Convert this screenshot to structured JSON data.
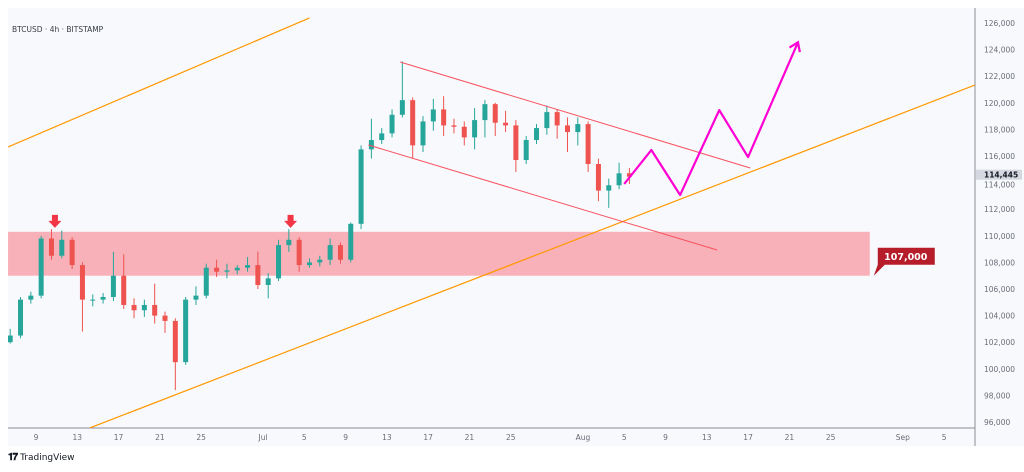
{
  "chart_data": {
    "type": "candlestick",
    "title": "BTCUSD · 4h · BITSTAMP",
    "symbol": "BTCUSD",
    "interval": "4h",
    "exchange": "BITSTAMP",
    "ylim": [
      96000,
      126000
    ],
    "y_ticks": [
      126000,
      124000,
      122000,
      120000,
      118000,
      116000,
      114000,
      112000,
      110000,
      108000,
      106000,
      104000,
      102000,
      100000,
      98000,
      96000
    ],
    "x_ticks": [
      {
        "label": "9",
        "date": "2025-06-09"
      },
      {
        "label": "13",
        "date": "2025-06-13"
      },
      {
        "label": "17",
        "date": "2025-06-17"
      },
      {
        "label": "21",
        "date": "2025-06-21"
      },
      {
        "label": "25",
        "date": "2025-06-25"
      },
      {
        "label": "Jul",
        "date": "2025-07-01"
      },
      {
        "label": "5",
        "date": "2025-07-05"
      },
      {
        "label": "9",
        "date": "2025-07-09"
      },
      {
        "label": "13",
        "date": "2025-07-13"
      },
      {
        "label": "17",
        "date": "2025-07-17"
      },
      {
        "label": "21",
        "date": "2025-07-21"
      },
      {
        "label": "25",
        "date": "2025-07-25"
      },
      {
        "label": "Aug",
        "date": "2025-08-01"
      },
      {
        "label": "5",
        "date": "2025-08-05"
      },
      {
        "label": "9",
        "date": "2025-08-09"
      },
      {
        "label": "13",
        "date": "2025-08-13"
      },
      {
        "label": "17",
        "date": "2025-08-17"
      },
      {
        "label": "21",
        "date": "2025-08-21"
      },
      {
        "label": "25",
        "date": "2025-08-25"
      },
      {
        "label": "Sep",
        "date": "2025-09-01"
      },
      {
        "label": "5",
        "date": "2025-09-05"
      }
    ],
    "last_price": 114445,
    "last_price_label": "114,445",
    "colors": {
      "up": "#26a69a",
      "down": "#ef5350",
      "channel": "#f7525f",
      "trendline": "#ff9800",
      "zone": "#f7a8b0",
      "projection": "#ff00d4",
      "label_bg": "#b71c2b"
    },
    "candles": [
      [
        "2025-06-06",
        102000,
        103000,
        101900,
        102500
      ],
      [
        "2025-06-07",
        102500,
        105400,
        102300,
        105200
      ],
      [
        "2025-06-08",
        105200,
        105800,
        104900,
        105500
      ],
      [
        "2025-06-09",
        105500,
        110000,
        105300,
        109800
      ],
      [
        "2025-06-10",
        109800,
        110500,
        108200,
        108500
      ],
      [
        "2025-06-11",
        108500,
        110400,
        108300,
        109700
      ],
      [
        "2025-06-12",
        109700,
        109900,
        107500,
        107800
      ],
      [
        "2025-06-13",
        107800,
        108000,
        102800,
        105200
      ],
      [
        "2025-06-14",
        105200,
        105600,
        104700,
        105200
      ],
      [
        "2025-06-15",
        105200,
        105700,
        104900,
        105400
      ],
      [
        "2025-06-16",
        105400,
        108800,
        105100,
        107000
      ],
      [
        "2025-06-17",
        107000,
        108600,
        104500,
        104800
      ],
      [
        "2025-06-18",
        104800,
        105300,
        103800,
        104400
      ],
      [
        "2025-06-19",
        104400,
        105200,
        103900,
        104800
      ],
      [
        "2025-06-20",
        104800,
        106400,
        103400,
        104000
      ],
      [
        "2025-06-21",
        104000,
        104300,
        102700,
        103600
      ],
      [
        "2025-06-22",
        103600,
        103800,
        98400,
        100500
      ],
      [
        "2025-06-23",
        100500,
        105400,
        100300,
        105200
      ],
      [
        "2025-06-24",
        105200,
        106200,
        104800,
        105500
      ],
      [
        "2025-06-25",
        105500,
        107900,
        105300,
        107600
      ],
      [
        "2025-06-26",
        107600,
        108200,
        106900,
        107300
      ],
      [
        "2025-06-27",
        107300,
        107900,
        106800,
        107400
      ],
      [
        "2025-06-28",
        107400,
        107800,
        107100,
        107600
      ],
      [
        "2025-06-29",
        107600,
        108400,
        107300,
        107800
      ],
      [
        "2025-06-30",
        107800,
        108800,
        106000,
        106300
      ],
      [
        "2025-07-01",
        106300,
        107200,
        105300,
        106800
      ],
      [
        "2025-07-02",
        106800,
        109700,
        106600,
        109300
      ],
      [
        "2025-07-03",
        109300,
        110500,
        108800,
        109700
      ],
      [
        "2025-07-04",
        109700,
        109900,
        107300,
        107800
      ],
      [
        "2025-07-05",
        107800,
        108300,
        107600,
        108000
      ],
      [
        "2025-07-06",
        108000,
        108500,
        107700,
        108200
      ],
      [
        "2025-07-07",
        108200,
        109800,
        107800,
        109300
      ],
      [
        "2025-07-08",
        109300,
        109500,
        107900,
        108200
      ],
      [
        "2025-07-09",
        108200,
        111000,
        108000,
        110900
      ],
      [
        "2025-07-10",
        110900,
        116800,
        110500,
        116500
      ],
      [
        "2025-07-11",
        116500,
        118800,
        115800,
        117200
      ],
      [
        "2025-07-12",
        117200,
        118100,
        116900,
        117700
      ],
      [
        "2025-07-13",
        117700,
        119500,
        117400,
        119100
      ],
      [
        "2025-07-14",
        119100,
        123100,
        118900,
        120200
      ],
      [
        "2025-07-15",
        120200,
        120400,
        115800,
        116800
      ],
      [
        "2025-07-16",
        116800,
        119000,
        116300,
        118600
      ],
      [
        "2025-07-17",
        118600,
        120300,
        117900,
        119500
      ],
      [
        "2025-07-18",
        119500,
        120500,
        117500,
        118300
      ],
      [
        "2025-07-19",
        118300,
        118800,
        117700,
        118200
      ],
      [
        "2025-07-20",
        118200,
        118600,
        116800,
        117400
      ],
      [
        "2025-07-21",
        117400,
        119600,
        116500,
        118700
      ],
      [
        "2025-07-22",
        118700,
        120200,
        117400,
        119900
      ],
      [
        "2025-07-23",
        119900,
        120000,
        117500,
        118500
      ],
      [
        "2025-07-24",
        118500,
        119400,
        117800,
        118300
      ],
      [
        "2025-07-25",
        118300,
        118700,
        114800,
        115700
      ],
      [
        "2025-07-26",
        115700,
        117500,
        115400,
        117200
      ],
      [
        "2025-07-27",
        117200,
        118400,
        116900,
        118100
      ],
      [
        "2025-07-28",
        118100,
        119800,
        117600,
        119300
      ],
      [
        "2025-07-29",
        119300,
        119500,
        117300,
        118300
      ],
      [
        "2025-07-30",
        118300,
        118900,
        116300,
        117800
      ],
      [
        "2025-07-31",
        117800,
        118900,
        116800,
        118400
      ],
      [
        "2025-08-01",
        118400,
        118600,
        114800,
        115400
      ],
      [
        "2025-08-02",
        115400,
        115800,
        112600,
        113400
      ],
      [
        "2025-08-03",
        113400,
        114300,
        112100,
        113800
      ],
      [
        "2025-08-04",
        113800,
        115500,
        113500,
        114700
      ],
      [
        "2025-08-05",
        114700,
        115100,
        113900,
        114445
      ]
    ],
    "annotations": {
      "upper_trendline": [
        [
          "2025-06-06T07:00",
          116680
        ],
        [
          "2025-07-05T12:00",
          126380
        ]
      ],
      "lower_trendline": [
        [
          "2025-06-14T05:00",
          95550
        ],
        [
          "2025-09-08T00:00",
          121340
        ]
      ],
      "channel_top": [
        [
          "2025-07-14T07:00",
          123070
        ],
        [
          "2025-08-17T05:00",
          115100
        ]
      ],
      "channel_bottom": [
        [
          "2025-07-11T05:00",
          116830
        ],
        [
          "2025-08-14T00:00",
          108930
        ]
      ],
      "resistance_zone": {
        "from": "2025-06-06T07:00",
        "to": "2025-08-28T19:00",
        "low": 107000,
        "high": 110300
      },
      "zone_label": "107,000",
      "projection_path": [
        [
          "2025-08-05T00:00",
          113900
        ],
        [
          "2025-08-07T15:00",
          116450
        ],
        [
          "2025-08-10T10:00",
          113070
        ],
        [
          "2025-08-14T05:00",
          119450
        ],
        [
          "2025-08-17T00:00",
          115920
        ],
        [
          "2025-08-21T20:00",
          124550
        ]
      ],
      "down_arrows": [
        [
          "2025-06-10T20:00",
          110600
        ],
        [
          "2025-07-03T16:00",
          110600
        ]
      ]
    }
  },
  "footer": {
    "brand": "TradingView",
    "logo_mark": "TV"
  }
}
